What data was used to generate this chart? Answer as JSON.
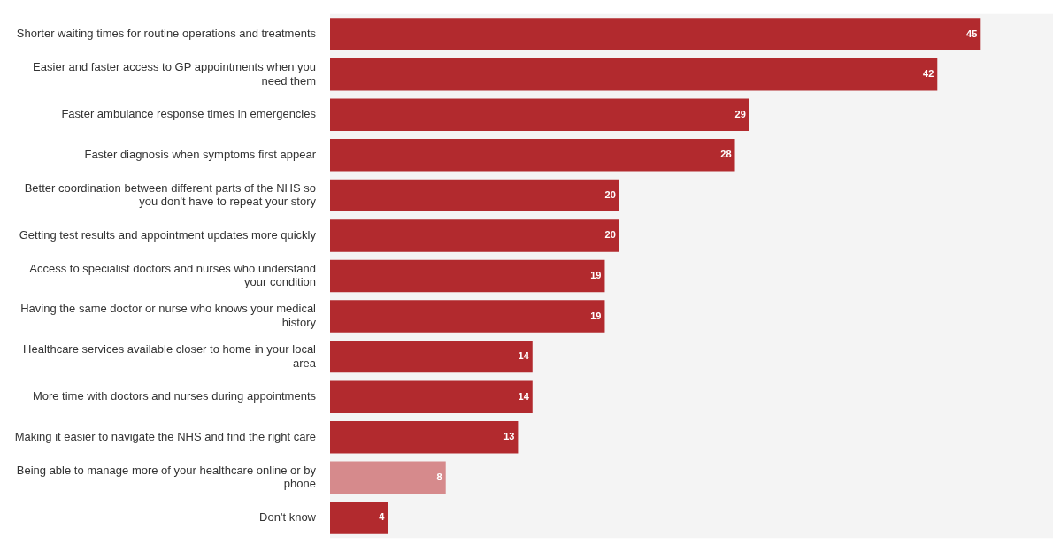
{
  "chart_data": {
    "type": "bar",
    "orientation": "horizontal",
    "data_labels": true,
    "legend": false,
    "categories": [
      "Shorter waiting times for routine operations and treatments",
      "Easier and faster access to GP appointments when you need them",
      "Faster ambulance response times in emergencies",
      "Faster diagnosis when symptoms first appear",
      "Better coordination between different parts of the NHS so you don't have to repeat your story",
      "Getting test results and appointment updates more quickly",
      "Access to specialist doctors and nurses who understand your condition",
      "Having the same doctor or nurse who knows your medical history",
      "Healthcare services available closer to home in your local area",
      "More time with doctors and nurses during appointments",
      "Making it easier to navigate the NHS and find the right care",
      "Being able to manage more of your healthcare online or by phone",
      "Don't know"
    ],
    "values": [
      45,
      42,
      29,
      28,
      20,
      20,
      19,
      19,
      14,
      14,
      13,
      8,
      4
    ],
    "colors": [
      "#b22a2e",
      "#b22a2e",
      "#b22a2e",
      "#b22a2e",
      "#b22a2e",
      "#b22a2e",
      "#b22a2e",
      "#b22a2e",
      "#b22a2e",
      "#b22a2e",
      "#b22a2e",
      "#d68a8c",
      "#b22a2e"
    ]
  }
}
